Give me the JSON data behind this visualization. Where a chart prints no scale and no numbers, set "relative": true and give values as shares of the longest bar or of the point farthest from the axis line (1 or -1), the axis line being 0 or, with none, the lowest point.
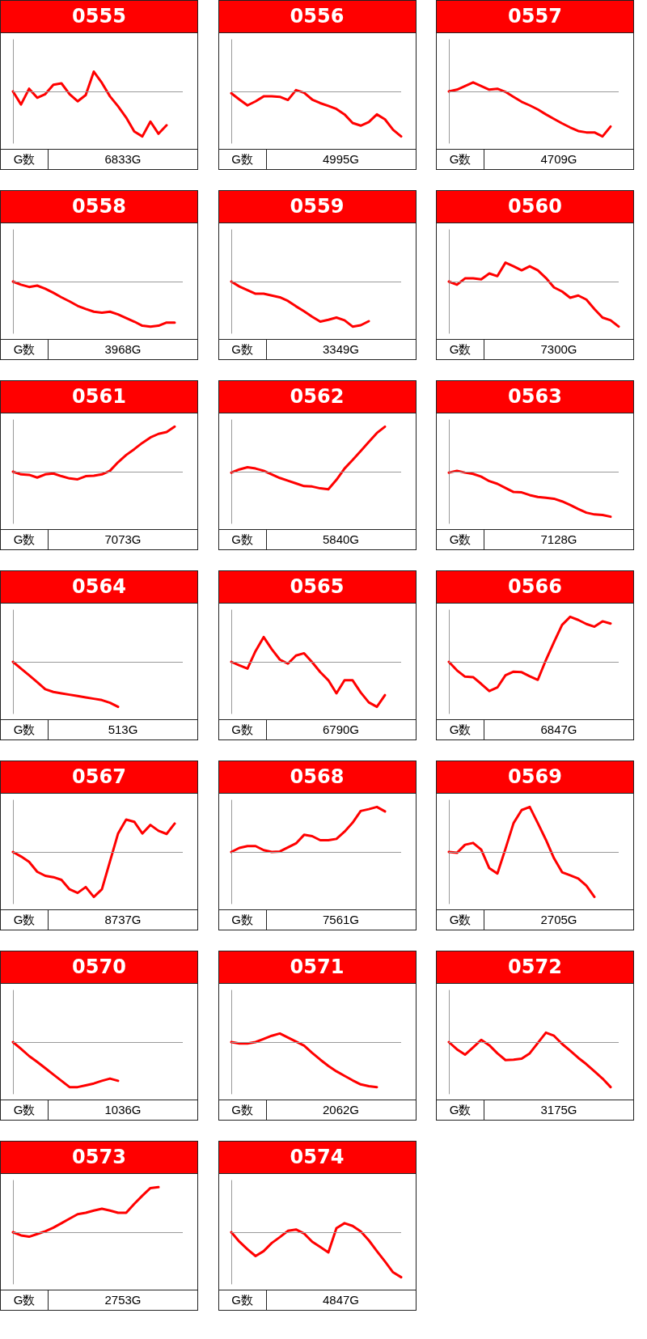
{
  "chart_data": [
    {
      "type": "line",
      "title": "0555",
      "relative": true,
      "marker": "none",
      "categories": [
        null,
        null,
        null,
        null,
        null,
        null,
        null,
        null,
        null,
        null,
        null,
        null,
        null,
        null,
        null,
        null,
        null,
        null,
        null,
        null,
        null,
        null
      ],
      "series": [
        {
          "color": "#ff0000",
          "values": [
            0,
            -0.29,
            0.06,
            -0.14,
            -0.06,
            0.15,
            0.18,
            -0.06,
            -0.22,
            -0.08,
            0.44,
            0.19,
            -0.11,
            -0.33,
            -0.58,
            -0.89,
            -1,
            -0.67,
            -0.94,
            -0.75,
            null,
            null
          ]
        }
      ],
      "ref_lines": [
        {
          "axis": "y",
          "value": 0,
          "color": "#999999"
        }
      ],
      "annotations": [
        "G数",
        "6833G"
      ]
    },
    {
      "type": "line",
      "title": "0556",
      "relative": true,
      "marker": "none",
      "categories": [
        null,
        null,
        null,
        null,
        null,
        null,
        null,
        null,
        null,
        null,
        null,
        null,
        null,
        null,
        null,
        null,
        null,
        null,
        null,
        null,
        null,
        null
      ],
      "series": [
        {
          "color": "#ff0000",
          "values": [
            -0.04,
            -0.18,
            -0.31,
            -0.22,
            -0.11,
            -0.11,
            -0.12,
            -0.19,
            0.03,
            -0.03,
            -0.18,
            -0.26,
            -0.32,
            -0.39,
            -0.51,
            -0.7,
            -0.76,
            -0.68,
            -0.51,
            -0.62,
            -0.85,
            -1
          ]
        }
      ],
      "ref_lines": [
        {
          "axis": "y",
          "value": 0,
          "color": "#999999"
        }
      ],
      "annotations": [
        "G数",
        "4995G"
      ]
    },
    {
      "type": "line",
      "title": "0557",
      "relative": true,
      "marker": "none",
      "categories": [
        null,
        null,
        null,
        null,
        null,
        null,
        null,
        null,
        null,
        null,
        null,
        null,
        null,
        null,
        null,
        null,
        null,
        null,
        null,
        null,
        null,
        null
      ],
      "series": [
        {
          "color": "#ff0000",
          "values": [
            0,
            0.04,
            0.12,
            0.2,
            0.12,
            0.04,
            0.06,
            -0.01,
            -0.12,
            -0.23,
            -0.31,
            -0.4,
            -0.51,
            -0.61,
            -0.71,
            -0.8,
            -0.88,
            -0.91,
            -0.91,
            -1,
            -0.78,
            null
          ]
        }
      ],
      "ref_lines": [
        {
          "axis": "y",
          "value": 0,
          "color": "#999999"
        }
      ],
      "annotations": [
        "G数",
        "4709G"
      ]
    },
    {
      "type": "line",
      "title": "0558",
      "relative": true,
      "marker": "none",
      "categories": [
        null,
        null,
        null,
        null,
        null,
        null,
        null,
        null,
        null,
        null,
        null,
        null,
        null,
        null,
        null,
        null,
        null,
        null,
        null,
        null,
        null,
        null
      ],
      "series": [
        {
          "color": "#ff0000",
          "values": [
            0,
            -0.07,
            -0.12,
            -0.09,
            -0.16,
            -0.25,
            -0.35,
            -0.44,
            -0.54,
            -0.61,
            -0.67,
            -0.69,
            -0.67,
            -0.73,
            -0.81,
            -0.89,
            -0.98,
            -1,
            -0.98,
            -0.91,
            -0.91,
            null
          ]
        }
      ],
      "ref_lines": [
        {
          "axis": "y",
          "value": 0,
          "color": "#999999"
        }
      ],
      "annotations": [
        "G数",
        "3968G"
      ]
    },
    {
      "type": "line",
      "title": "0559",
      "relative": true,
      "marker": "none",
      "categories": [
        null,
        null,
        null,
        null,
        null,
        null,
        null,
        null,
        null,
        null,
        null,
        null,
        null,
        null,
        null,
        null,
        null,
        null,
        null,
        null,
        null,
        null
      ],
      "series": [
        {
          "color": "#ff0000",
          "values": [
            0,
            -0.11,
            -0.19,
            -0.27,
            -0.27,
            -0.31,
            -0.35,
            -0.43,
            -0.55,
            -0.66,
            -0.78,
            -0.89,
            -0.85,
            -0.8,
            -0.86,
            -1,
            -0.97,
            -0.88,
            null,
            null,
            null,
            null
          ]
        }
      ],
      "ref_lines": [
        {
          "axis": "y",
          "value": 0,
          "color": "#999999"
        }
      ],
      "annotations": [
        "G数",
        "3349G"
      ]
    },
    {
      "type": "line",
      "title": "0560",
      "relative": true,
      "marker": "none",
      "categories": [
        null,
        null,
        null,
        null,
        null,
        null,
        null,
        null,
        null,
        null,
        null,
        null,
        null,
        null,
        null,
        null,
        null,
        null,
        null,
        null,
        null,
        null
      ],
      "series": [
        {
          "color": "#ff0000",
          "values": [
            0,
            -0.07,
            0.07,
            0.07,
            0.05,
            0.18,
            0.12,
            0.42,
            0.34,
            0.25,
            0.34,
            0.25,
            0.08,
            -0.13,
            -0.22,
            -0.36,
            -0.31,
            -0.4,
            -0.61,
            -0.8,
            -0.86,
            -1
          ]
        }
      ],
      "ref_lines": [
        {
          "axis": "y",
          "value": 0,
          "color": "#999999"
        }
      ],
      "annotations": [
        "G数",
        "7300G"
      ]
    },
    {
      "type": "line",
      "title": "0561",
      "relative": true,
      "marker": "none",
      "categories": [
        null,
        null,
        null,
        null,
        null,
        null,
        null,
        null,
        null,
        null,
        null,
        null,
        null,
        null,
        null,
        null,
        null,
        null,
        null,
        null,
        null,
        null
      ],
      "series": [
        {
          "color": "#ff0000",
          "values": [
            0,
            -0.06,
            -0.07,
            -0.13,
            -0.06,
            -0.04,
            -0.1,
            -0.15,
            -0.17,
            -0.1,
            -0.09,
            -0.06,
            0.02,
            0.21,
            0.37,
            0.5,
            0.64,
            0.76,
            0.84,
            0.88,
            1,
            null
          ]
        }
      ],
      "ref_lines": [
        {
          "axis": "y",
          "value": 0,
          "color": "#999999"
        }
      ],
      "annotations": [
        "G数",
        "7073G"
      ]
    },
    {
      "type": "line",
      "title": "0562",
      "relative": true,
      "marker": "none",
      "categories": [
        null,
        null,
        null,
        null,
        null,
        null,
        null,
        null,
        null,
        null,
        null,
        null,
        null,
        null,
        null,
        null,
        null,
        null,
        null,
        null,
        null,
        null
      ],
      "series": [
        {
          "color": "#ff0000",
          "values": [
            -0.02,
            0.05,
            0.1,
            0.07,
            0.02,
            -0.06,
            -0.14,
            -0.2,
            -0.26,
            -0.32,
            -0.33,
            -0.37,
            -0.39,
            -0.18,
            0.07,
            0.26,
            0.46,
            0.66,
            0.86,
            1,
            null,
            null
          ]
        }
      ],
      "ref_lines": [
        {
          "axis": "y",
          "value": 0,
          "color": "#999999"
        }
      ],
      "annotations": [
        "G数",
        "5840G"
      ]
    },
    {
      "type": "line",
      "title": "0563",
      "relative": true,
      "marker": "none",
      "categories": [
        null,
        null,
        null,
        null,
        null,
        null,
        null,
        null,
        null,
        null,
        null,
        null,
        null,
        null,
        null,
        null,
        null,
        null,
        null,
        null,
        null,
        null
      ],
      "series": [
        {
          "color": "#ff0000",
          "values": [
            -0.02,
            0.02,
            -0.02,
            -0.05,
            -0.11,
            -0.21,
            -0.27,
            -0.36,
            -0.45,
            -0.46,
            -0.52,
            -0.56,
            -0.58,
            -0.6,
            -0.66,
            -0.74,
            -0.83,
            -0.91,
            -0.95,
            -0.96,
            -1,
            null
          ]
        }
      ],
      "ref_lines": [
        {
          "axis": "y",
          "value": 0,
          "color": "#999999"
        }
      ],
      "annotations": [
        "G数",
        "7128G"
      ]
    },
    {
      "type": "line",
      "title": "0564",
      "relative": true,
      "marker": "none",
      "categories": [
        null,
        null,
        null,
        null,
        null,
        null,
        null,
        null,
        null,
        null,
        null,
        null,
        null,
        null,
        null,
        null,
        null,
        null,
        null,
        null,
        null,
        null
      ],
      "series": [
        {
          "color": "#ff0000",
          "values": [
            0,
            -0.15,
            -0.3,
            -0.45,
            -0.61,
            -0.67,
            -0.7,
            -0.73,
            -0.76,
            -0.79,
            -0.82,
            -0.85,
            -0.91,
            -1,
            null,
            null,
            null,
            null,
            null,
            null,
            null,
            null
          ]
        }
      ],
      "ref_lines": [
        {
          "axis": "y",
          "value": 0,
          "color": "#999999"
        }
      ],
      "annotations": [
        "G数",
        "513G"
      ]
    },
    {
      "type": "line",
      "title": "0565",
      "relative": true,
      "marker": "none",
      "categories": [
        null,
        null,
        null,
        null,
        null,
        null,
        null,
        null,
        null,
        null,
        null,
        null,
        null,
        null,
        null,
        null,
        null,
        null,
        null,
        null,
        null,
        null
      ],
      "series": [
        {
          "color": "#ff0000",
          "values": [
            0,
            -0.08,
            -0.15,
            0.24,
            0.55,
            0.28,
            0.05,
            -0.04,
            0.14,
            0.19,
            -0.01,
            -0.23,
            -0.41,
            -0.7,
            -0.41,
            -0.41,
            -0.68,
            -0.9,
            -1,
            -0.74,
            null,
            null
          ]
        }
      ],
      "ref_lines": [
        {
          "axis": "y",
          "value": 0,
          "color": "#999999"
        }
      ],
      "annotations": [
        "G数",
        "6790G"
      ]
    },
    {
      "type": "line",
      "title": "0566",
      "relative": true,
      "marker": "none",
      "categories": [
        null,
        null,
        null,
        null,
        null,
        null,
        null,
        null,
        null,
        null,
        null,
        null,
        null,
        null,
        null,
        null,
        null,
        null,
        null,
        null,
        null,
        null
      ],
      "series": [
        {
          "color": "#ff0000",
          "values": [
            0,
            -0.19,
            -0.33,
            -0.34,
            -0.49,
            -0.65,
            -0.57,
            -0.3,
            -0.22,
            -0.23,
            -0.32,
            -0.4,
            0.04,
            0.44,
            0.82,
            1,
            0.93,
            0.84,
            0.78,
            0.9,
            0.85,
            null
          ]
        }
      ],
      "ref_lines": [
        {
          "axis": "y",
          "value": 0,
          "color": "#999999"
        }
      ],
      "annotations": [
        "G数",
        "6847G"
      ]
    },
    {
      "type": "line",
      "title": "0567",
      "relative": true,
      "marker": "none",
      "categories": [
        null,
        null,
        null,
        null,
        null,
        null,
        null,
        null,
        null,
        null,
        null,
        null,
        null,
        null,
        null,
        null,
        null,
        null,
        null,
        null,
        null,
        null
      ],
      "series": [
        {
          "color": "#ff0000",
          "values": [
            0,
            -0.1,
            -0.22,
            -0.44,
            -0.53,
            -0.56,
            -0.62,
            -0.83,
            -0.91,
            -0.78,
            -1,
            -0.83,
            -0.21,
            0.41,
            0.72,
            0.67,
            0.41,
            0.6,
            0.47,
            0.4,
            0.63,
            null
          ]
        }
      ],
      "ref_lines": [
        {
          "axis": "y",
          "value": 0,
          "color": "#999999"
        }
      ],
      "annotations": [
        "G数",
        "8737G"
      ]
    },
    {
      "type": "line",
      "title": "0568",
      "relative": true,
      "marker": "none",
      "categories": [
        null,
        null,
        null,
        null,
        null,
        null,
        null,
        null,
        null,
        null,
        null,
        null,
        null,
        null,
        null,
        null,
        null,
        null,
        null,
        null,
        null,
        null
      ],
      "series": [
        {
          "color": "#ff0000",
          "values": [
            0,
            0.09,
            0.13,
            0.13,
            0.04,
            0,
            0.01,
            0.1,
            0.19,
            0.38,
            0.35,
            0.26,
            0.26,
            0.29,
            0.45,
            0.65,
            0.91,
            0.95,
            1,
            0.9,
            null,
            null
          ]
        }
      ],
      "ref_lines": [
        {
          "axis": "y",
          "value": 0,
          "color": "#999999"
        }
      ],
      "annotations": [
        "G数",
        "7561G"
      ]
    },
    {
      "type": "line",
      "title": "0569",
      "relative": true,
      "marker": "none",
      "categories": [
        null,
        null,
        null,
        null,
        null,
        null,
        null,
        null,
        null,
        null,
        null,
        null,
        null,
        null,
        null,
        null,
        null,
        null,
        null,
        null,
        null,
        null
      ],
      "series": [
        {
          "color": "#ff0000",
          "values": [
            0,
            -0.02,
            0.16,
            0.2,
            0.05,
            -0.36,
            -0.48,
            0.07,
            0.64,
            0.93,
            1,
            0.64,
            0.27,
            -0.14,
            -0.45,
            -0.52,
            -0.59,
            -0.75,
            -1,
            null,
            null,
            null
          ]
        }
      ],
      "ref_lines": [
        {
          "axis": "y",
          "value": 0,
          "color": "#999999"
        }
      ],
      "annotations": [
        "G数",
        "2705G"
      ]
    },
    {
      "type": "line",
      "title": "0570",
      "relative": true,
      "marker": "none",
      "categories": [
        null,
        null,
        null,
        null,
        null,
        null,
        null,
        null,
        null,
        null,
        null,
        null,
        null,
        null,
        null,
        null,
        null,
        null,
        null,
        null,
        null,
        null
      ],
      "series": [
        {
          "color": "#ff0000",
          "values": [
            0,
            -0.15,
            -0.31,
            -0.44,
            -0.58,
            -0.72,
            -0.86,
            -1,
            -1,
            -0.96,
            -0.92,
            -0.86,
            -0.81,
            -0.86,
            null,
            null,
            null,
            null,
            null,
            null,
            null,
            null
          ]
        }
      ],
      "ref_lines": [
        {
          "axis": "y",
          "value": 0,
          "color": "#999999"
        }
      ],
      "annotations": [
        "G数",
        "1036G"
      ]
    },
    {
      "type": "line",
      "title": "0571",
      "relative": true,
      "marker": "none",
      "categories": [
        null,
        null,
        null,
        null,
        null,
        null,
        null,
        null,
        null,
        null,
        null,
        null,
        null,
        null,
        null,
        null,
        null,
        null,
        null,
        null,
        null,
        null
      ],
      "series": [
        {
          "color": "#ff0000",
          "values": [
            0,
            -0.03,
            -0.03,
            0,
            0.07,
            0.14,
            0.19,
            0.1,
            0.01,
            -0.08,
            -0.24,
            -0.39,
            -0.53,
            -0.65,
            -0.75,
            -0.85,
            -0.94,
            -0.98,
            -1,
            null,
            null,
            null
          ]
        }
      ],
      "ref_lines": [
        {
          "axis": "y",
          "value": 0,
          "color": "#999999"
        }
      ],
      "annotations": [
        "G数",
        "2062G"
      ]
    },
    {
      "type": "line",
      "title": "0572",
      "relative": true,
      "marker": "none",
      "categories": [
        null,
        null,
        null,
        null,
        null,
        null,
        null,
        null,
        null,
        null,
        null,
        null,
        null,
        null,
        null,
        null,
        null,
        null,
        null,
        null,
        null,
        null
      ],
      "series": [
        {
          "color": "#ff0000",
          "values": [
            0,
            -0.16,
            -0.28,
            -0.12,
            0.05,
            -0.07,
            -0.25,
            -0.4,
            -0.39,
            -0.37,
            -0.25,
            -0.02,
            0.21,
            0.14,
            -0.04,
            -0.19,
            -0.35,
            -0.49,
            -0.65,
            -0.81,
            -1,
            null
          ]
        }
      ],
      "ref_lines": [
        {
          "axis": "y",
          "value": 0,
          "color": "#999999"
        }
      ],
      "annotations": [
        "G数",
        "3175G"
      ]
    },
    {
      "type": "line",
      "title": "0573",
      "relative": true,
      "marker": "none",
      "categories": [
        null,
        null,
        null,
        null,
        null,
        null,
        null,
        null,
        null,
        null,
        null,
        null,
        null,
        null,
        null,
        null,
        null,
        null,
        null,
        null,
        null,
        null
      ],
      "series": [
        {
          "color": "#ff0000",
          "values": [
            0,
            -0.07,
            -0.1,
            -0.04,
            0.02,
            0.1,
            0.2,
            0.3,
            0.4,
            0.43,
            0.48,
            0.52,
            0.48,
            0.43,
            0.43,
            0.63,
            0.81,
            0.98,
            1,
            null,
            null,
            null
          ]
        }
      ],
      "ref_lines": [
        {
          "axis": "y",
          "value": 0,
          "color": "#999999"
        }
      ],
      "annotations": [
        "G数",
        "2753G"
      ]
    },
    {
      "type": "line",
      "title": "0574",
      "relative": true,
      "marker": "none",
      "categories": [
        null,
        null,
        null,
        null,
        null,
        null,
        null,
        null,
        null,
        null,
        null,
        null,
        null,
        null,
        null,
        null,
        null,
        null,
        null,
        null,
        null,
        null
      ],
      "series": [
        {
          "color": "#ff0000",
          "values": [
            0,
            -0.21,
            -0.38,
            -0.53,
            -0.42,
            -0.24,
            -0.11,
            0.03,
            0.06,
            -0.03,
            -0.21,
            -0.33,
            -0.45,
            0.09,
            0.2,
            0.14,
            0.02,
            -0.18,
            -0.42,
            -0.65,
            -0.89,
            -1
          ]
        }
      ],
      "ref_lines": [
        {
          "axis": "y",
          "value": 0,
          "color": "#999999"
        }
      ],
      "annotations": [
        "G数",
        "4847G"
      ]
    }
  ]
}
